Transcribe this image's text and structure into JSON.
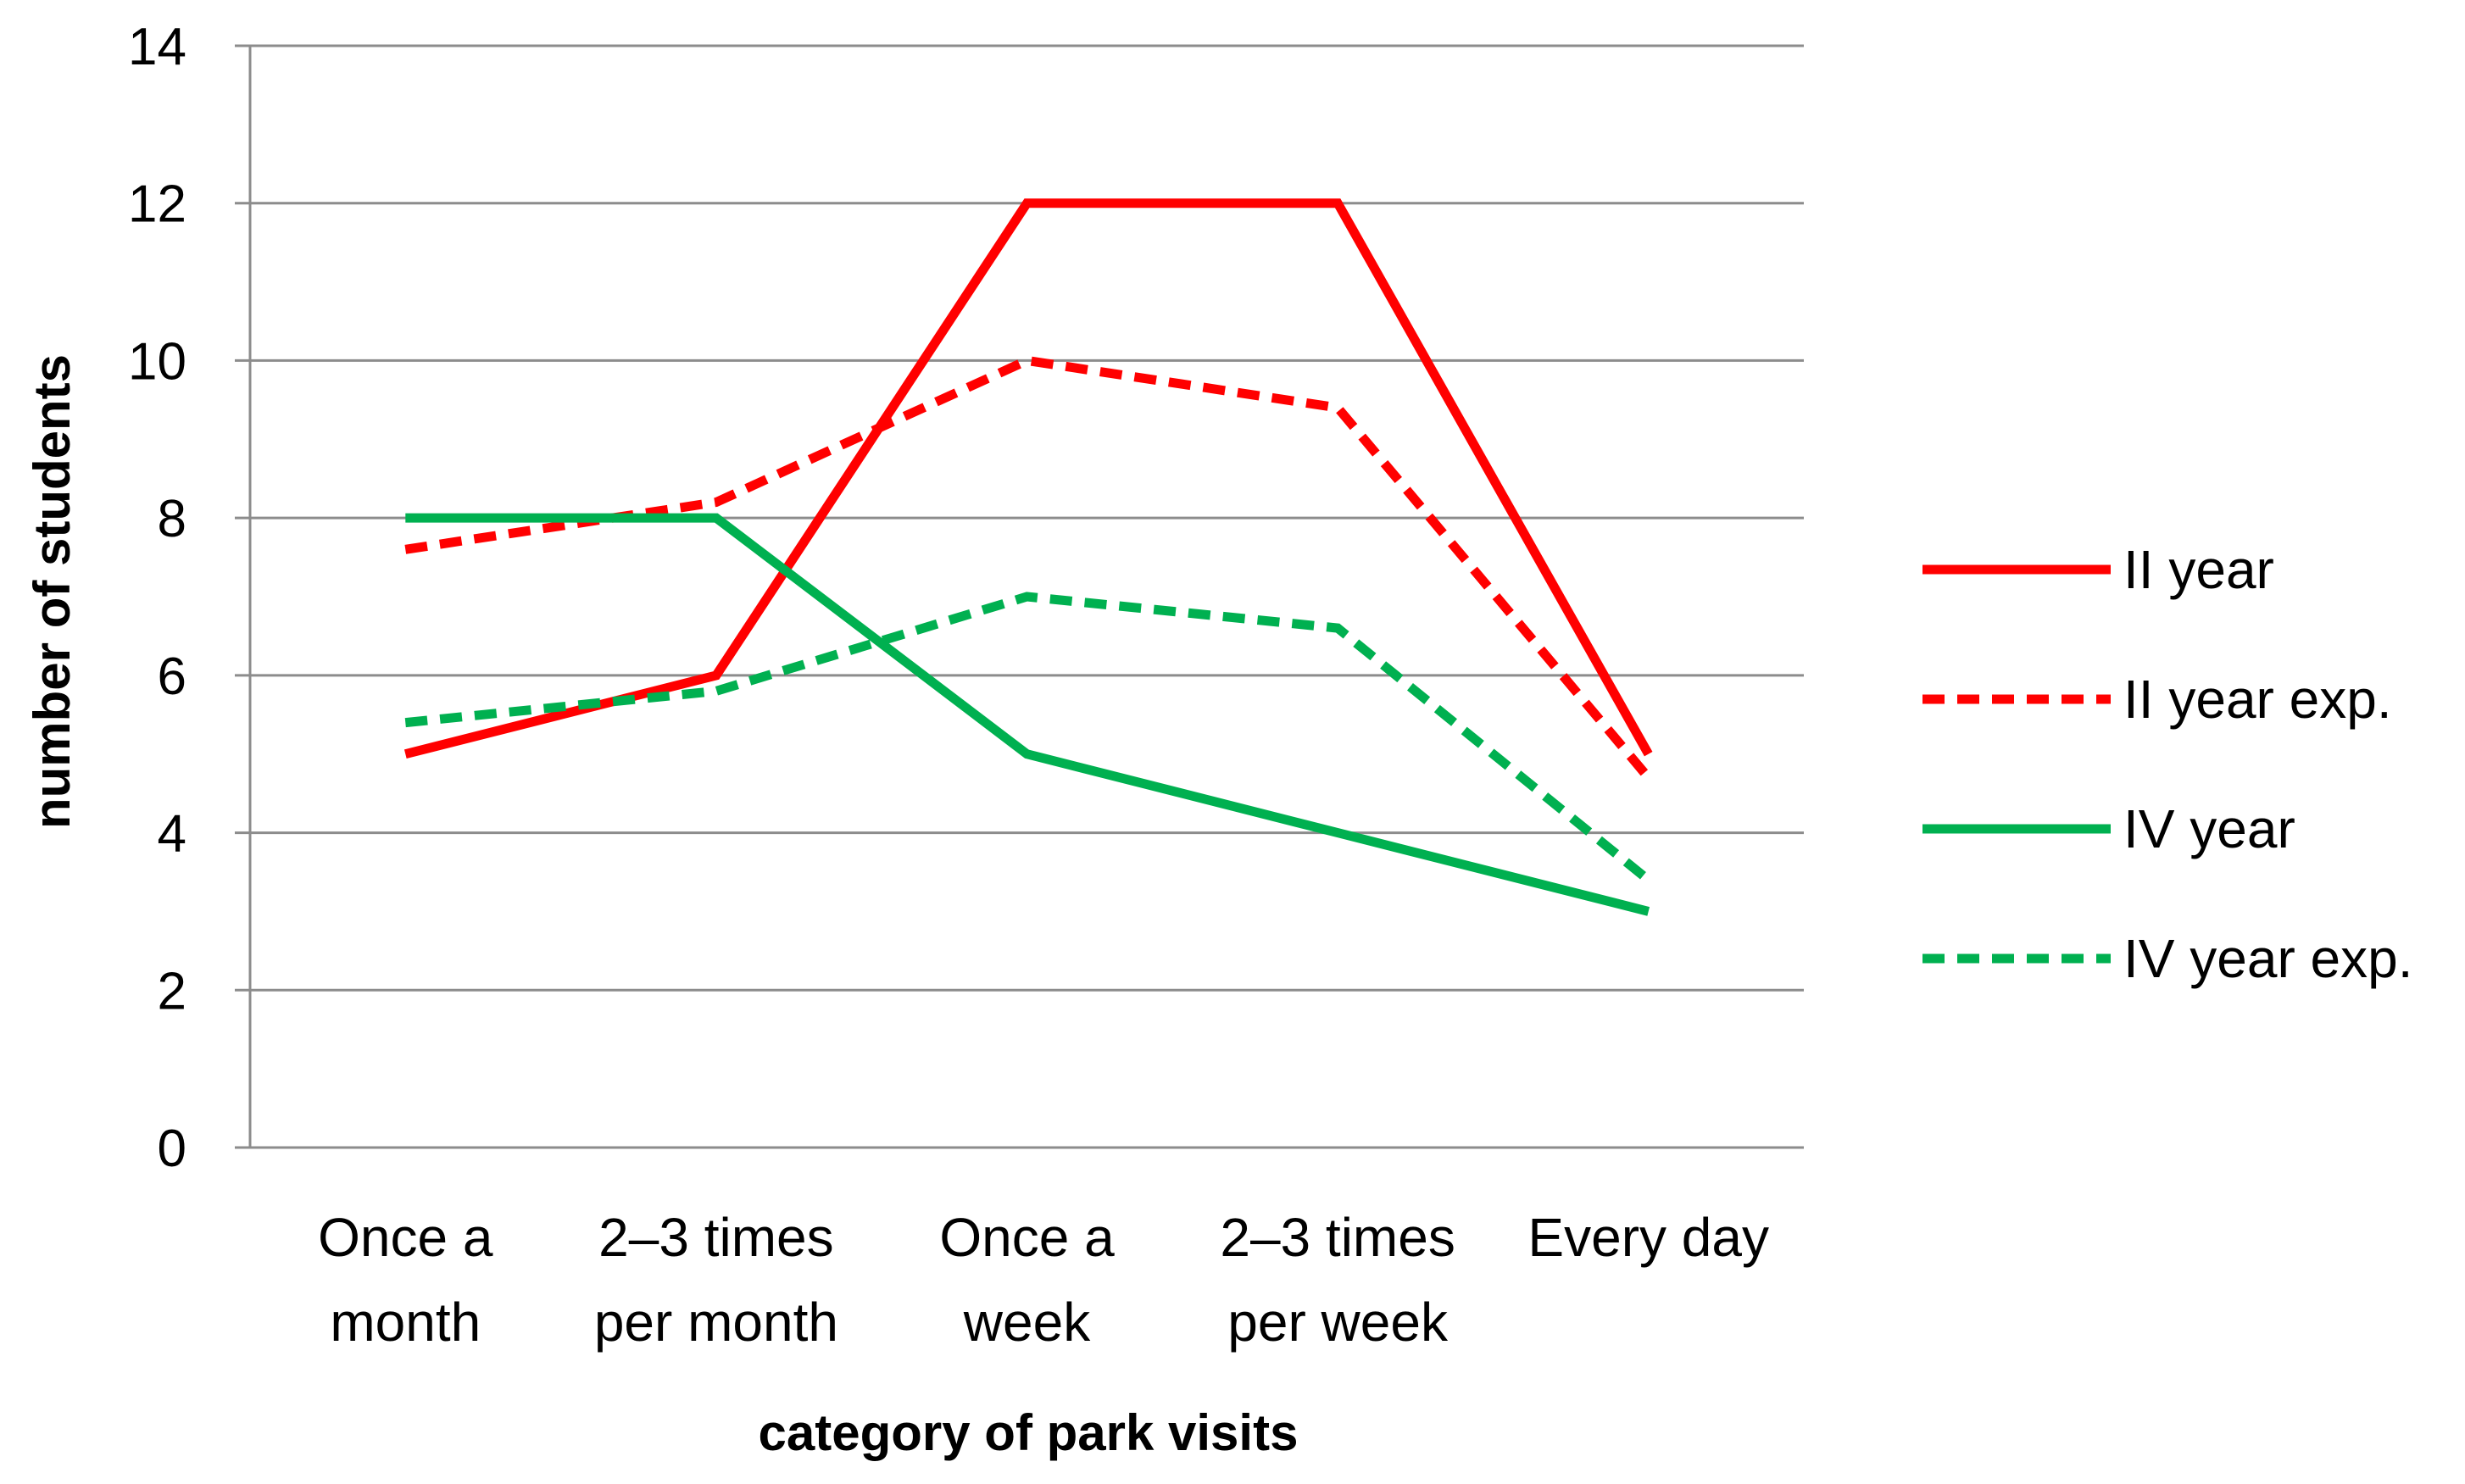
{
  "chart_data": {
    "type": "line",
    "title": "",
    "xlabel": "category of park visits",
    "ylabel": "number of students",
    "ylim": [
      0,
      14
    ],
    "yticks": [
      0,
      2,
      4,
      6,
      8,
      10,
      12,
      14
    ],
    "grid": true,
    "legend_position": "right",
    "categories": [
      [
        "Once a",
        "month"
      ],
      [
        "2–3 times",
        "per month"
      ],
      [
        "Once a",
        "week"
      ],
      [
        "2–3 times",
        "per week"
      ],
      [
        "Every day"
      ]
    ],
    "series": [
      {
        "name": "II year",
        "values": [
          5,
          6,
          12,
          12,
          5
        ],
        "color": "#ff0000",
        "dashed": false
      },
      {
        "name": "II year exp.",
        "values": [
          7.6,
          8.2,
          10,
          9.4,
          4.7
        ],
        "color": "#ff0000",
        "dashed": true
      },
      {
        "name": "IV year",
        "values": [
          8,
          8,
          5,
          4,
          3
        ],
        "color": "#00b050",
        "dashed": false
      },
      {
        "name": "IV year exp.",
        "values": [
          5.4,
          5.8,
          7,
          6.6,
          3.4
        ],
        "color": "#00b050",
        "dashed": true
      }
    ]
  }
}
